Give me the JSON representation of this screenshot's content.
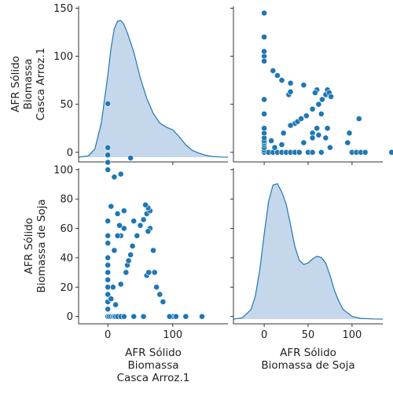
{
  "chart_data": {
    "type": "scatter",
    "kind": "pairplot",
    "color": "#1f77b4",
    "kde_fill": "#c5d7ea",
    "variables": [
      {
        "label_lines": [
          "AFR Sólido",
          "Biomassa",
          "Casca Arroz.1"
        ]
      },
      {
        "label_lines": [
          "AFR Sólido",
          "Biomassa de Soja"
        ]
      }
    ],
    "axes": {
      "casca_range": [
        -45,
        185
      ],
      "soja_range": [
        -5,
        101
      ],
      "soja_x_range": [
        -35,
        135
      ],
      "casca_ticks": [
        0,
        50,
        100,
        150
      ],
      "soja_ticks": [
        0,
        20,
        40,
        60,
        80,
        100
      ],
      "casca_x_ticks": [
        0,
        100
      ],
      "soja_x_ticks": [
        0,
        50,
        100
      ]
    },
    "diag_casca_kde": [
      [
        -45,
        0
      ],
      [
        -30,
        0.01
      ],
      [
        -20,
        0.06
      ],
      [
        -10,
        0.25
      ],
      [
        0,
        0.6
      ],
      [
        5,
        0.8
      ],
      [
        10,
        0.94
      ],
      [
        15,
        0.995
      ],
      [
        20,
        1.0
      ],
      [
        25,
        0.97
      ],
      [
        30,
        0.91
      ],
      [
        40,
        0.77
      ],
      [
        50,
        0.58
      ],
      [
        60,
        0.43
      ],
      [
        70,
        0.32
      ],
      [
        80,
        0.25
      ],
      [
        90,
        0.22
      ],
      [
        100,
        0.2
      ],
      [
        110,
        0.15
      ],
      [
        120,
        0.09
      ],
      [
        130,
        0.05
      ],
      [
        140,
        0.03
      ],
      [
        150,
        0.015
      ],
      [
        160,
        0.006
      ],
      [
        175,
        0.001
      ],
      [
        185,
        0
      ]
    ],
    "diag_soja_kde": [
      [
        -35,
        0
      ],
      [
        -25,
        0.01
      ],
      [
        -15,
        0.07
      ],
      [
        -10,
        0.17
      ],
      [
        -5,
        0.36
      ],
      [
        0,
        0.62
      ],
      [
        5,
        0.86
      ],
      [
        10,
        0.98
      ],
      [
        15,
        0.99
      ],
      [
        20,
        0.93
      ],
      [
        25,
        0.84
      ],
      [
        30,
        0.69
      ],
      [
        35,
        0.53
      ],
      [
        40,
        0.43
      ],
      [
        45,
        0.4
      ],
      [
        50,
        0.41
      ],
      [
        55,
        0.44
      ],
      [
        60,
        0.46
      ],
      [
        65,
        0.45
      ],
      [
        70,
        0.41
      ],
      [
        75,
        0.32
      ],
      [
        80,
        0.21
      ],
      [
        85,
        0.13
      ],
      [
        90,
        0.07
      ],
      [
        100,
        0.02
      ],
      [
        110,
        0.005
      ],
      [
        125,
        0.001
      ],
      [
        135,
        0
      ]
    ],
    "points": [
      [
        0,
        0
      ],
      [
        2,
        0
      ],
      [
        5,
        0
      ],
      [
        8,
        0
      ],
      [
        10,
        0
      ],
      [
        12,
        0
      ],
      [
        15,
        0
      ],
      [
        20,
        0
      ],
      [
        25,
        0
      ],
      [
        40,
        0
      ],
      [
        55,
        0
      ],
      [
        100,
        0
      ],
      [
        105,
        0
      ],
      [
        120,
        0
      ],
      [
        145,
        0
      ],
      [
        0,
        5
      ],
      [
        0,
        10
      ],
      [
        0,
        15
      ],
      [
        0,
        20
      ],
      [
        0,
        25
      ],
      [
        0,
        30
      ],
      [
        0,
        35
      ],
      [
        0,
        40
      ],
      [
        0,
        50
      ],
      [
        0,
        55
      ],
      [
        0,
        65
      ],
      [
        0,
        100
      ],
      [
        0,
        105
      ],
      [
        0,
        110
      ],
      [
        0,
        115
      ],
      [
        0,
        145
      ],
      [
        10,
        95
      ],
      [
        20,
        97
      ],
      [
        35,
        108
      ],
      [
        30,
        35
      ],
      [
        20,
        55
      ],
      [
        25,
        60
      ],
      [
        15,
        70
      ],
      [
        15,
        55
      ],
      [
        40,
        65
      ],
      [
        5,
        75
      ],
      [
        25,
        72
      ],
      [
        18,
        62
      ],
      [
        10,
        45
      ],
      [
        8,
        20
      ],
      [
        5,
        12
      ],
      [
        12,
        8
      ],
      [
        20,
        22
      ],
      [
        28,
        30
      ],
      [
        32,
        38
      ],
      [
        35,
        42
      ],
      [
        38,
        48
      ],
      [
        45,
        55
      ],
      [
        50,
        62
      ],
      [
        55,
        66
      ],
      [
        60,
        70
      ],
      [
        65,
        72
      ],
      [
        62,
        74
      ],
      [
        58,
        76
      ],
      [
        60,
        28
      ],
      [
        63,
        30
      ],
      [
        65,
        60
      ],
      [
        62,
        58
      ],
      [
        70,
        45
      ],
      [
        72,
        30
      ],
      [
        75,
        20
      ],
      [
        80,
        15
      ],
      [
        85,
        10
      ],
      [
        95,
        0
      ]
    ],
    "points_note": "pairs are [casca, soja]"
  }
}
